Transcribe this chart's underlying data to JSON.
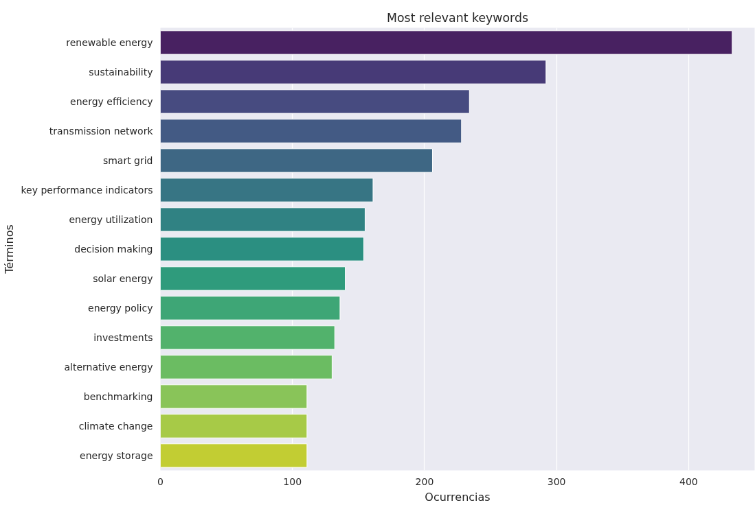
{
  "chart_data": {
    "type": "bar",
    "orientation": "horizontal",
    "title": "Most relevant keywords",
    "xlabel": "Ocurrencias",
    "ylabel": "Términos",
    "categories": [
      "renewable energy",
      "sustainability",
      "energy efficiency",
      "transmission network",
      "smart grid",
      "key performance indicators",
      "energy utilization",
      "decision making",
      "solar energy",
      "energy policy",
      "investments",
      "alternative energy",
      "benchmarking",
      "climate change",
      "energy storage"
    ],
    "values": [
      433,
      292,
      234,
      228,
      206,
      161,
      155,
      154,
      140,
      136,
      132,
      130,
      111,
      111,
      111
    ],
    "colors": [
      "#482161",
      "#473a77",
      "#474b80",
      "#435a84",
      "#3e6784",
      "#377584",
      "#308283",
      "#2b8f81",
      "#2f9b7c",
      "#3ea676",
      "#52b26c",
      "#6bbc62",
      "#89c459",
      "#a7ca47",
      "#c2cd33"
    ],
    "xlim": [
      0,
      450
    ],
    "xticks": [
      0,
      100,
      200,
      300,
      400
    ],
    "grid": "x"
  }
}
